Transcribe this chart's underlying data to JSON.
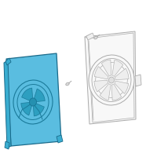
{
  "bg_color": "#ffffff",
  "shroud_fill": "#5abde0",
  "shroud_stroke": "#1a6a8a",
  "shroud_inner_stroke": "#1a7a9a",
  "outline_stroke": "#aaaaaa",
  "outline_fill": "#ffffff",
  "screw_color": "#aaaaaa",
  "fig_width": 2.0,
  "fig_height": 2.0,
  "dpi": 100
}
